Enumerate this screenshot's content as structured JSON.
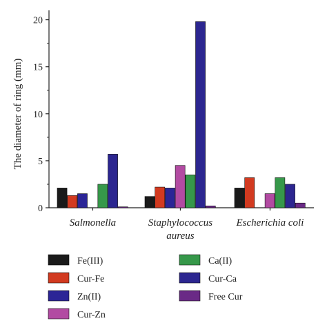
{
  "chart_data": {
    "type": "bar",
    "categories": [
      [
        "Salmonella"
      ],
      [
        "Staphylococcus",
        "aureus"
      ],
      [
        "Escherichia coli"
      ]
    ],
    "ylabel": "The diameter of ring (mm)",
    "xlabel": "",
    "ylim": [
      0,
      21
    ],
    "yticks": [
      0,
      5,
      10,
      15,
      20
    ],
    "grid": false,
    "legend_position": "bottom",
    "series": [
      {
        "name": "Fe(III)",
        "color": "#1a1a1a",
        "values": [
          2.1,
          1.2,
          2.1
        ]
      },
      {
        "name": "Cur-Fe",
        "color": "#d23a20",
        "values": [
          1.3,
          2.2,
          3.2
        ]
      },
      {
        "name": "Zn(II)",
        "color": "#2b2596",
        "values": [
          1.5,
          2.1,
          0
        ]
      },
      {
        "name": "Cur-Zn",
        "color": "#b24ba2",
        "values": [
          0,
          4.5,
          1.5
        ]
      },
      {
        "name": "Ca(II)",
        "color": "#36984a",
        "values": [
          2.5,
          3.5,
          3.2
        ]
      },
      {
        "name": "Cur-Ca",
        "color": "#2c2690",
        "values": [
          5.7,
          19.8,
          2.5
        ]
      },
      {
        "name": "Free Cur",
        "color": "#6a2a86",
        "values": [
          0.1,
          0.2,
          0.5
        ]
      }
    ]
  }
}
